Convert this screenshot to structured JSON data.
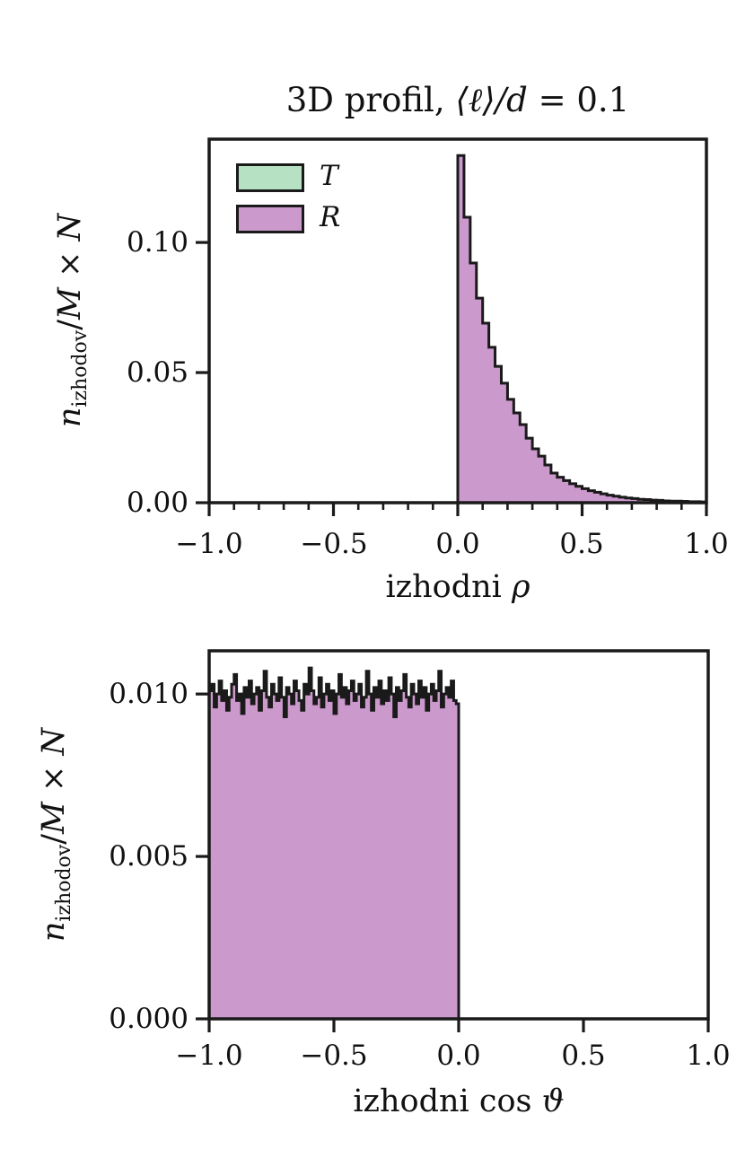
{
  "figure": {
    "background": "#ffffff",
    "edge_color": "#1a1a1a",
    "accent_purple": "#cc99cd",
    "accent_green": "#b7e1c3"
  },
  "chart_data": [
    {
      "type": "bar",
      "subtype": "stepfilled-histogram",
      "title": "3D profil, ⟨ℓ⟩/d = 0.1",
      "title_parts": {
        "prefix": "3D profil, ",
        "math": "⟨ℓ⟩/d",
        "suffix": " = 0.1"
      },
      "xlabel": "izhodni ρ",
      "xlabel_parts": {
        "text": "izhodni ",
        "math": "ρ"
      },
      "ylabel": "n_izhodov / M × N",
      "ylabel_parts": {
        "n": "n",
        "sub": "izhodov",
        "slash": "/",
        "M": "M",
        "times": " × ",
        "N": "N"
      },
      "xlim": [
        -1.0,
        1.0
      ],
      "ylim": [
        0,
        0.1397
      ],
      "xticks": [
        -1.0,
        -0.5,
        0.0,
        0.5,
        1.0
      ],
      "xtick_labels": [
        "−1.0",
        "−0.5",
        "0.0",
        "0.5",
        "1.0"
      ],
      "x_minor_step": 0.1,
      "yticks": [
        0.0,
        0.05,
        0.1
      ],
      "ytick_labels": [
        "0.00",
        "0.05",
        "0.10"
      ],
      "grid": false,
      "legend_position": "upper-left",
      "legend": [
        {
          "label": "T",
          "color": "#b7e1c3"
        },
        {
          "label": "R",
          "color": "#cc99cd"
        }
      ],
      "edge_color": "#1a1a1a",
      "series": [
        {
          "name": "T",
          "color": "#b7e1c3",
          "visible": false,
          "bin_start": 0.0,
          "bin_width": 0.025,
          "values": []
        },
        {
          "name": "R",
          "color": "#cc99cd",
          "visible": true,
          "bin_start": 0.0,
          "bin_width": 0.025,
          "values": [
            0.1334,
            0.1097,
            0.0921,
            0.0786,
            0.069,
            0.0597,
            0.0524,
            0.0459,
            0.0397,
            0.0345,
            0.03,
            0.0248,
            0.0207,
            0.0179,
            0.0145,
            0.0114,
            0.0098,
            0.0085,
            0.0073,
            0.0063,
            0.0054,
            0.0046,
            0.004,
            0.0034,
            0.0029,
            0.0025,
            0.0021,
            0.0018,
            0.0016,
            0.0013,
            0.0012,
            0.001,
            0.0009,
            0.0007,
            0.0006,
            0.0006,
            0.0005,
            0.0004,
            0.0004,
            0.0003
          ]
        }
      ]
    },
    {
      "type": "bar",
      "subtype": "stepfilled-histogram",
      "title": "",
      "xlabel": "izhodni cos ϑ",
      "xlabel_parts": {
        "text": "izhodni cos ",
        "math": "ϑ"
      },
      "ylabel": "n_izhodov / M × N",
      "ylabel_parts": {
        "n": "n",
        "sub": "izhodov",
        "slash": "/",
        "M": "M",
        "times": " × ",
        "N": "N"
      },
      "xlim": [
        -1.0,
        1.0
      ],
      "ylim": [
        0,
        0.01133
      ],
      "xticks": [
        -1.0,
        -0.5,
        0.0,
        0.5,
        1.0
      ],
      "xtick_labels": [
        "−1.0",
        "−0.5",
        "0.0",
        "0.5",
        "1.0"
      ],
      "yticks": [
        0.0,
        0.005,
        0.01
      ],
      "ytick_labels": [
        "0.000",
        "0.005",
        "0.010"
      ],
      "grid": false,
      "edge_color": "#1a1a1a",
      "series": [
        {
          "name": "R",
          "color": "#cc99cd",
          "visible": true,
          "bin_start": -1.0,
          "bin_width": 0.01,
          "values": [
            0.0101,
            0.0103,
            0.0096,
            0.01,
            0.0104,
            0.0098,
            0.0101,
            0.0095,
            0.0099,
            0.0103,
            0.0106,
            0.0098,
            0.01,
            0.0094,
            0.0102,
            0.0099,
            0.0104,
            0.0097,
            0.01,
            0.0102,
            0.0095,
            0.0101,
            0.0107,
            0.0099,
            0.0096,
            0.0103,
            0.01,
            0.0098,
            0.0105,
            0.0099,
            0.0093,
            0.0102,
            0.01,
            0.0097,
            0.0104,
            0.0101,
            0.0098,
            0.0095,
            0.0103,
            0.01,
            0.0108,
            0.0101,
            0.0097,
            0.0099,
            0.0105,
            0.0096,
            0.01,
            0.0103,
            0.0098,
            0.0101,
            0.0094,
            0.01,
            0.0106,
            0.0099,
            0.0102,
            0.0097,
            0.0101,
            0.0104,
            0.0098,
            0.01,
            0.0103,
            0.0096,
            0.0099,
            0.0107,
            0.01,
            0.0095,
            0.0102,
            0.0099,
            0.0104,
            0.0097,
            0.0101,
            0.0098,
            0.0105,
            0.01,
            0.0093,
            0.0102,
            0.0098,
            0.0101,
            0.0106,
            0.0099,
            0.0096,
            0.0103,
            0.01,
            0.0097,
            0.0104,
            0.0099,
            0.0102,
            0.0095,
            0.01,
            0.0103,
            0.0098,
            0.0101,
            0.0107,
            0.0096,
            0.01,
            0.0102,
            0.0099,
            0.0104,
            0.0098,
            0.0097
          ]
        }
      ]
    }
  ]
}
